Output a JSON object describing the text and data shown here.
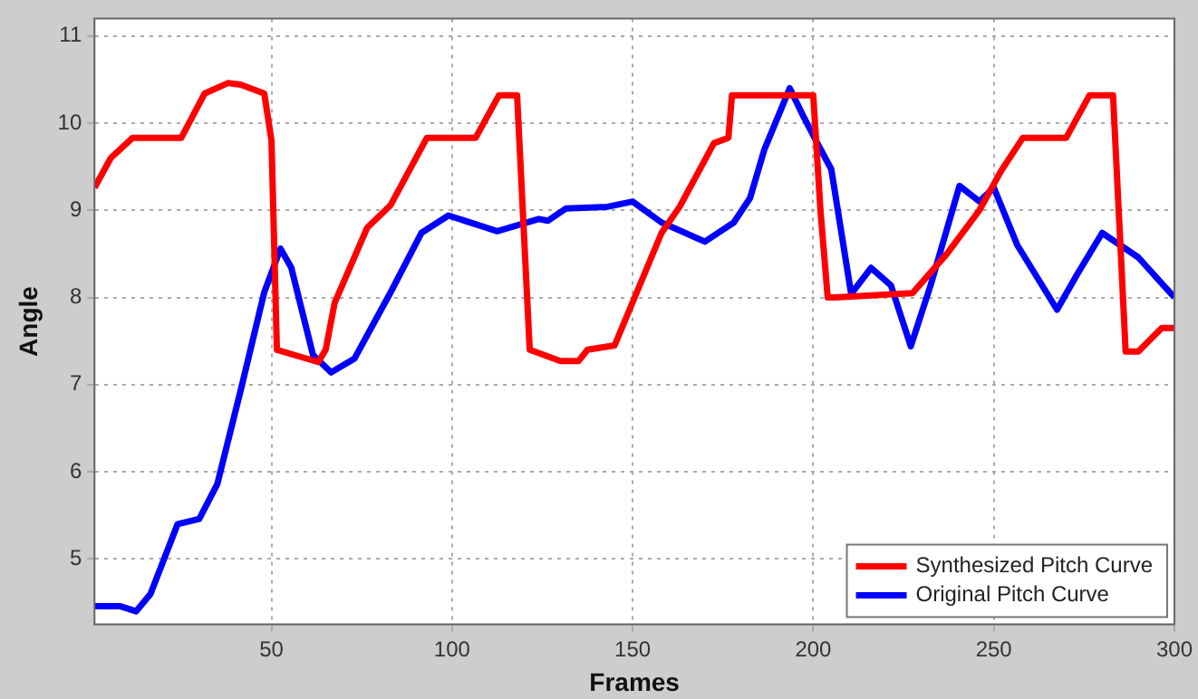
{
  "chart_data": {
    "type": "line",
    "xlabel": "Frames",
    "ylabel": "Angle",
    "xlim": [
      1,
      300
    ],
    "ylim": [
      4.25,
      11.2
    ],
    "xticks": [
      50,
      100,
      150,
      200,
      250,
      300
    ],
    "yticks": [
      5,
      6,
      7,
      8,
      9,
      10,
      11
    ],
    "grid": true,
    "legend": "bottom right",
    "marker": "none",
    "line_style": "solid",
    "series": [
      {
        "name": "Synthesized Pitch Curve",
        "color": "#ff0000",
        "x": [
          1,
          5.5,
          11.5,
          25,
          31.5,
          38,
          41.5,
          48,
          50,
          51.5,
          58,
          63,
          65,
          67.5,
          76.5,
          83,
          93,
          106.5,
          113,
          118,
          121.5,
          130,
          135,
          137.5,
          145,
          158,
          163,
          172.5,
          176.5,
          177.5,
          200,
          202,
          204,
          206,
          227.5,
          237,
          246,
          252,
          258,
          270,
          276.5,
          283,
          286.5,
          290,
          296.5,
          300
        ],
        "values": [
          9.26,
          9.6,
          9.83,
          9.83,
          10.34,
          10.46,
          10.44,
          10.34,
          9.8,
          7.4,
          7.32,
          7.26,
          7.4,
          7.94,
          8.8,
          9.06,
          9.83,
          9.83,
          10.32,
          10.32,
          7.4,
          7.27,
          7.27,
          7.4,
          7.45,
          8.74,
          9.04,
          9.77,
          9.83,
          10.32,
          10.32,
          9.0,
          8.0,
          8.0,
          8.05,
          8.5,
          9.0,
          9.45,
          9.83,
          9.83,
          10.32,
          10.32,
          7.38,
          7.38,
          7.65,
          7.65
        ]
      },
      {
        "name": "Original Pitch Curve",
        "color": "#0000ff",
        "x": [
          1,
          8,
          12.5,
          16.5,
          24,
          30,
          35,
          41.5,
          48,
          52.5,
          55.5,
          61.5,
          66.5,
          73,
          83,
          91.5,
          99,
          112.5,
          124,
          126.5,
          131.5,
          143,
          150,
          158,
          170,
          178,
          182.5,
          186.5,
          193.5,
          197,
          201.5,
          205,
          210.5,
          216,
          221.5,
          227,
          232.5,
          240.5,
          246,
          250,
          256.5,
          267.5,
          273,
          280,
          290,
          300
        ],
        "values": [
          4.46,
          4.46,
          4.4,
          4.6,
          5.4,
          5.46,
          5.86,
          6.94,
          8.06,
          8.56,
          8.34,
          7.34,
          7.14,
          7.3,
          8.06,
          8.74,
          8.94,
          8.76,
          8.9,
          8.88,
          9.02,
          9.04,
          9.1,
          8.86,
          8.64,
          8.86,
          9.14,
          9.7,
          10.4,
          10.1,
          9.74,
          9.47,
          8.04,
          8.34,
          8.14,
          7.44,
          8.14,
          9.28,
          9.1,
          9.26,
          8.6,
          7.86,
          8.26,
          8.74,
          8.46,
          8.0
        ]
      }
    ]
  }
}
